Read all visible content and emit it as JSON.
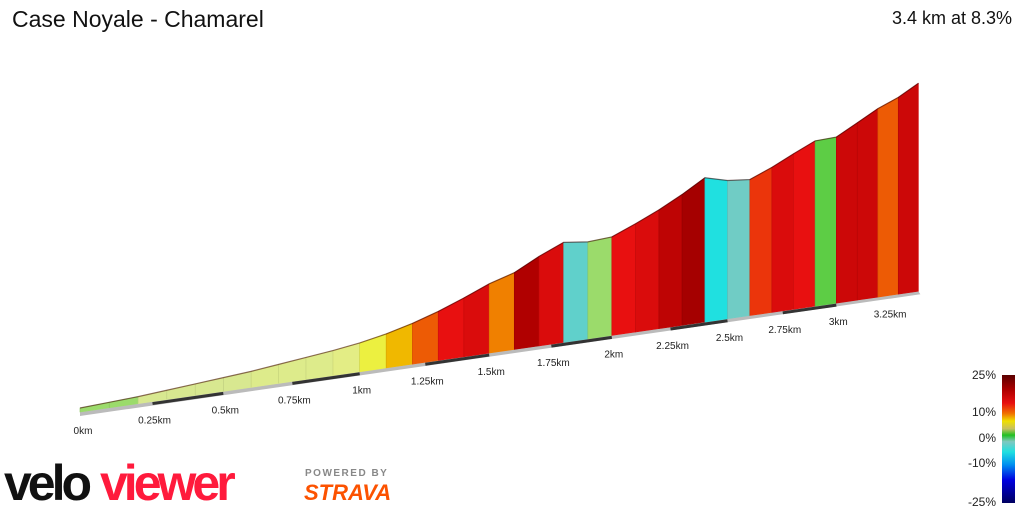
{
  "header": {
    "title": "Case Noyale - Chamarel",
    "summary": "3.4 km at 8.3%"
  },
  "chart_data": {
    "type": "area",
    "subtype": "3d-gradient-elevation-profile",
    "xlabel": "",
    "ylabel": "",
    "segment_length_km": 0.1,
    "distance_km": 3.4,
    "average_gradient_pct": 8.3,
    "gradients_pct": [
      2,
      2,
      3,
      3,
      3,
      3,
      4,
      4,
      4,
      5,
      7,
      9,
      11,
      13,
      14,
      10,
      17,
      14,
      -4,
      2,
      13,
      14,
      16,
      18,
      -8,
      -3,
      12,
      14,
      13,
      1,
      15,
      15,
      11,
      15
    ],
    "x_ticks": [
      "0km",
      "0.25km",
      "0.5km",
      "0.75km",
      "1km",
      "1.25km",
      "1.5km",
      "1.75km",
      "2km",
      "2.25km",
      "2.5km",
      "2.75km",
      "3km",
      "3.25km"
    ],
    "x_tick_values_km": [
      0,
      0.25,
      0.5,
      0.75,
      1,
      1.25,
      1.5,
      1.75,
      2,
      2.25,
      2.5,
      2.75,
      3,
      3.25
    ],
    "color_scale": {
      "labels": [
        "25%",
        "10%",
        "0%",
        "-10%",
        "-25%"
      ],
      "stops": [
        [
          -25,
          "#000060"
        ],
        [
          -15,
          "#0000e0"
        ],
        [
          -8,
          "#20e0e0"
        ],
        [
          -2,
          "#80c8c0"
        ],
        [
          0,
          "#20c020"
        ],
        [
          3,
          "#d8e890"
        ],
        [
          6,
          "#e8f080"
        ],
        [
          8,
          "#f0f000"
        ],
        [
          10,
          "#f08000"
        ],
        [
          13,
          "#e81010"
        ],
        [
          17,
          "#b00000"
        ],
        [
          25,
          "#5a0000"
        ]
      ]
    },
    "legend_position": "bottom-right"
  },
  "branding": {
    "logo_velo": "velo",
    "logo_viewer": "viewer",
    "powered_by": "POWERED BY",
    "strava": "STRAVA"
  }
}
